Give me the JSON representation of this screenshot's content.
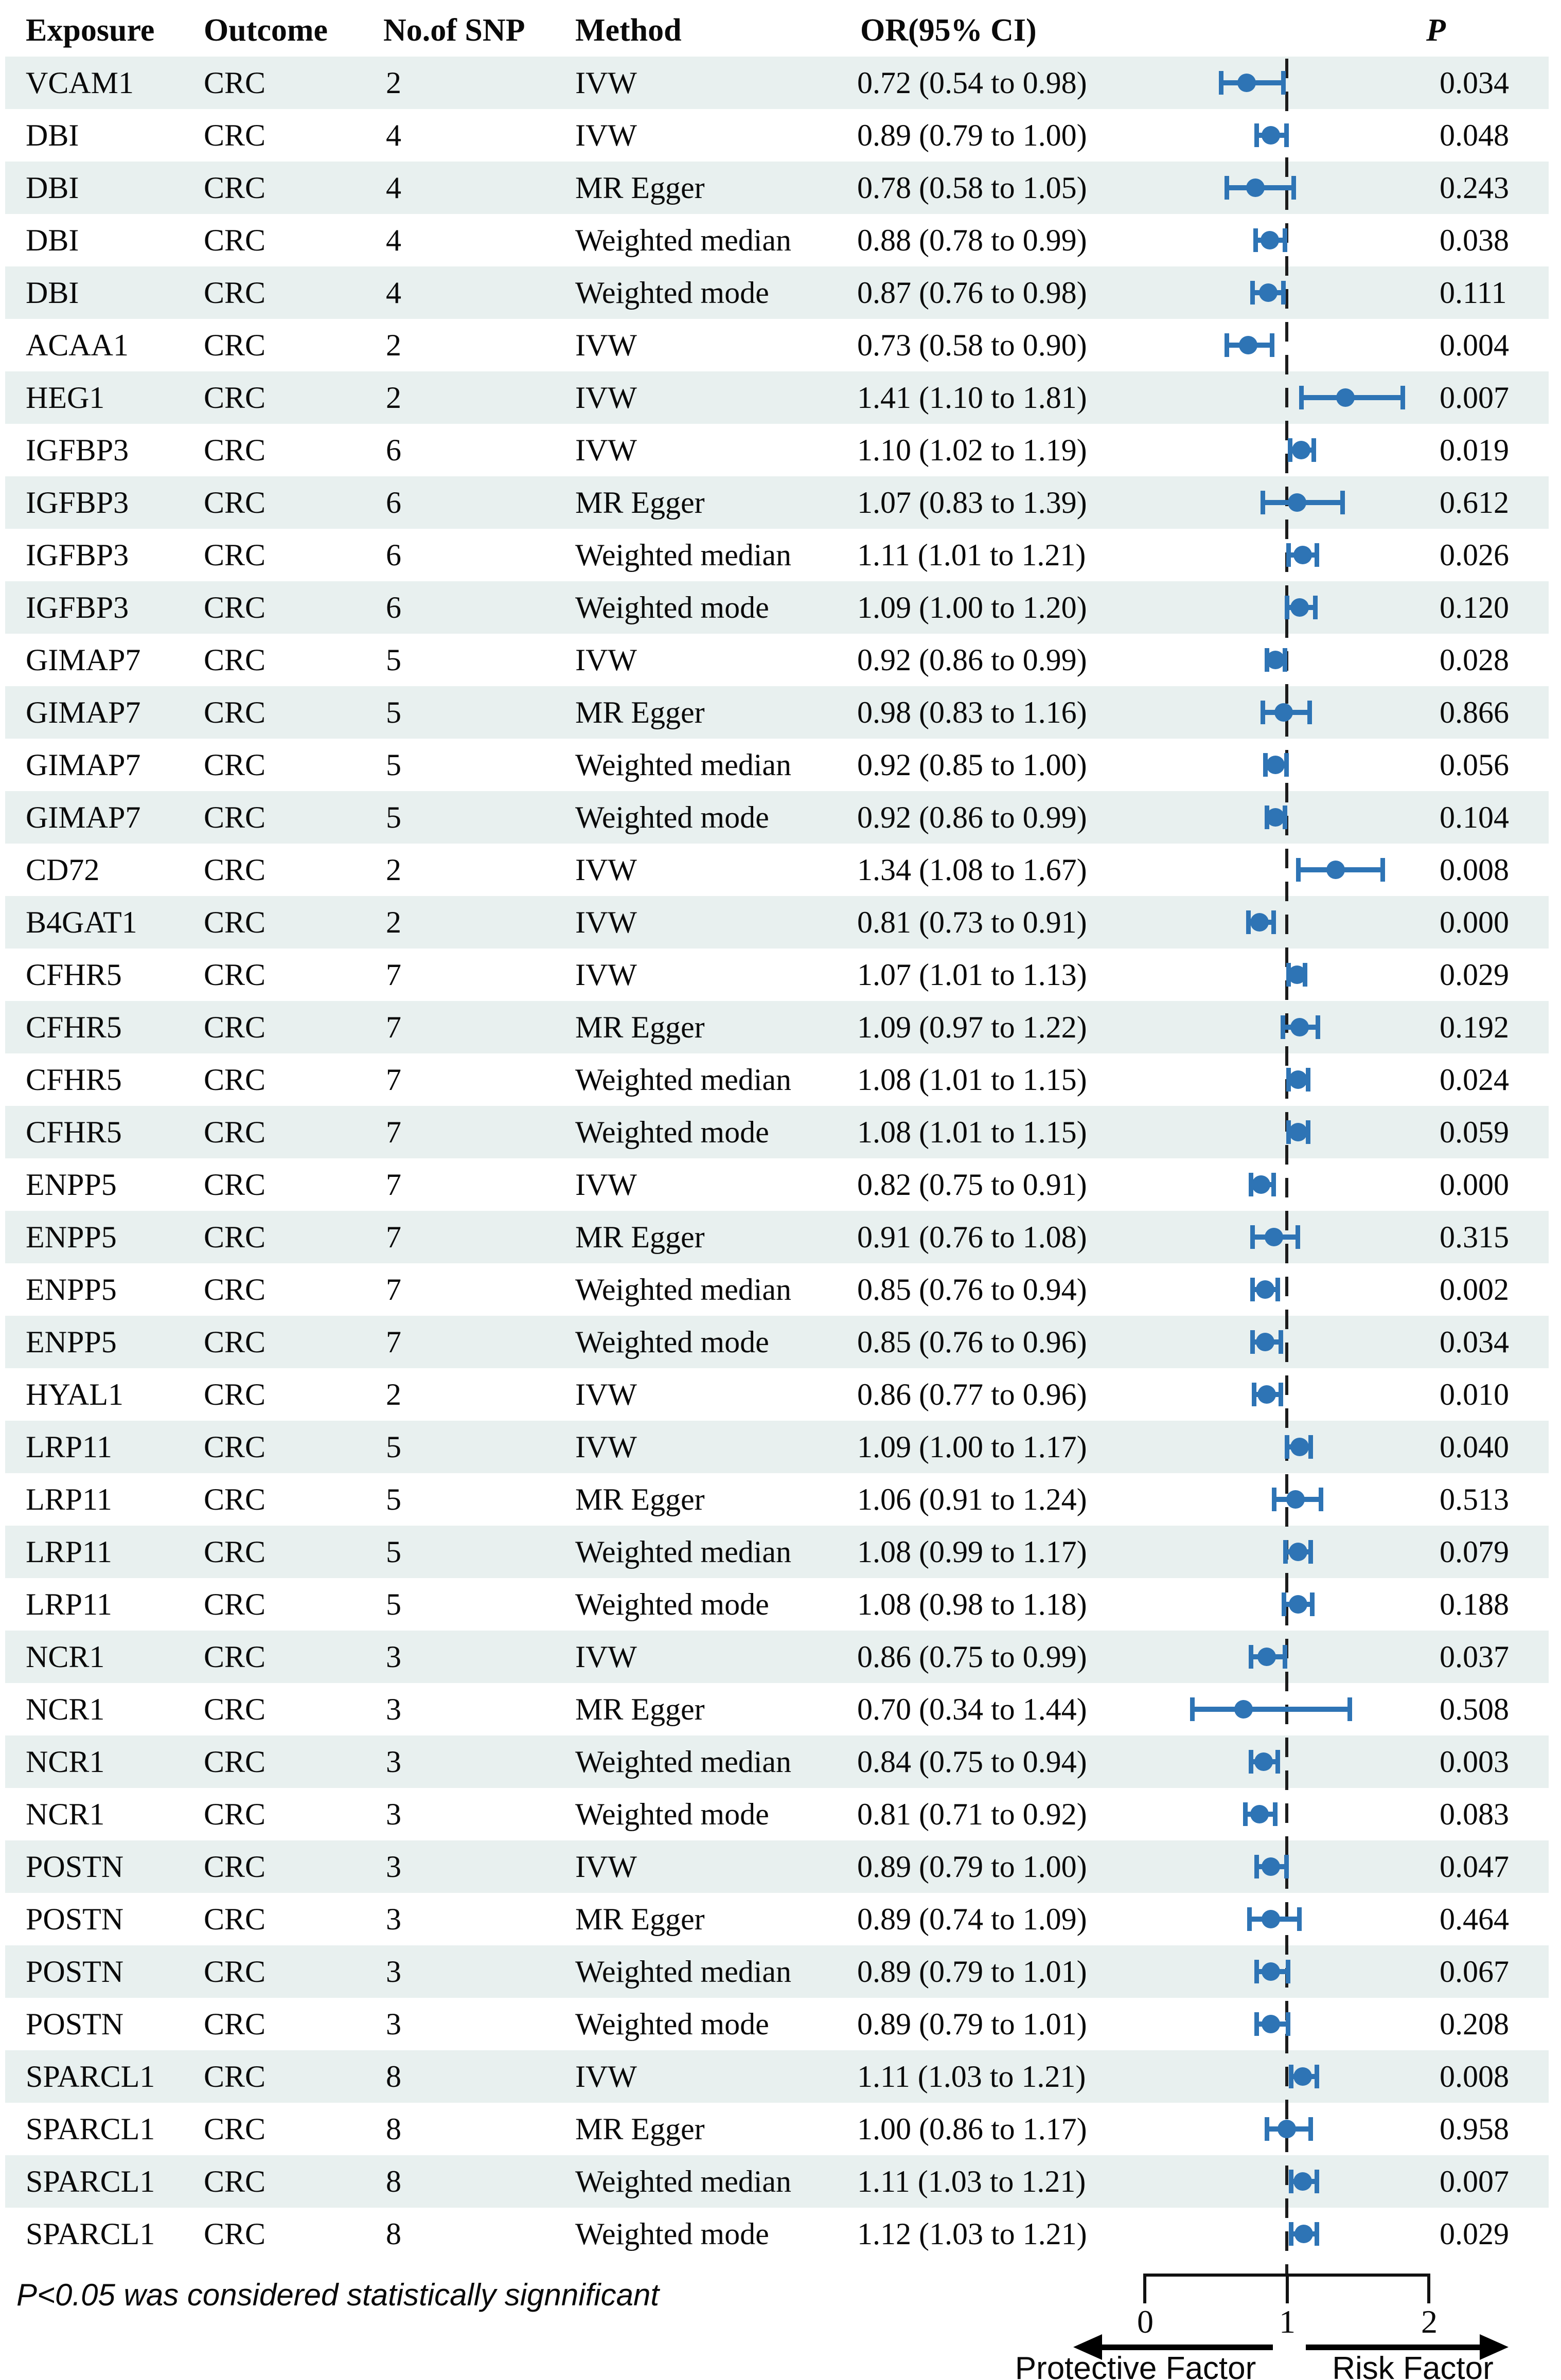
{
  "chart_data": {
    "type": "forest",
    "columns": [
      "Exposure",
      "Outcome",
      "No.of SNP",
      "Method",
      "OR(95% CI)",
      "P"
    ],
    "or_axis": {
      "min": 0,
      "max": 2,
      "ticks": [
        "0",
        "1",
        "2"
      ],
      "ref_line": 1,
      "left_label": "Protective Factor",
      "right_label": "Risk Factor"
    },
    "footnote": "P<0.05 was considered statistically signnificant",
    "rows": [
      {
        "exposure": "VCAM1",
        "outcome": "CRC",
        "snp": "2",
        "method": "IVW",
        "or": 0.72,
        "lo": 0.54,
        "hi": 0.98,
        "p": "0.034"
      },
      {
        "exposure": "DBI",
        "outcome": "CRC",
        "snp": "4",
        "method": "IVW",
        "or": 0.89,
        "lo": 0.79,
        "hi": 1.0,
        "p": "0.048"
      },
      {
        "exposure": "DBI",
        "outcome": "CRC",
        "snp": "4",
        "method": "MR Egger",
        "or": 0.78,
        "lo": 0.58,
        "hi": 1.05,
        "p": "0.243"
      },
      {
        "exposure": "DBI",
        "outcome": "CRC",
        "snp": "4",
        "method": "Weighted median",
        "or": 0.88,
        "lo": 0.78,
        "hi": 0.99,
        "p": "0.038"
      },
      {
        "exposure": "DBI",
        "outcome": "CRC",
        "snp": "4",
        "method": "Weighted mode",
        "or": 0.87,
        "lo": 0.76,
        "hi": 0.98,
        "p": "0.111"
      },
      {
        "exposure": "ACAA1",
        "outcome": "CRC",
        "snp": "2",
        "method": "IVW",
        "or": 0.73,
        "lo": 0.58,
        "hi": 0.9,
        "p": "0.004"
      },
      {
        "exposure": "HEG1",
        "outcome": "CRC",
        "snp": "2",
        "method": "IVW",
        "or": 1.41,
        "lo": 1.1,
        "hi": 1.81,
        "p": "0.007"
      },
      {
        "exposure": "IGFBP3",
        "outcome": "CRC",
        "snp": "6",
        "method": "IVW",
        "or": 1.1,
        "lo": 1.02,
        "hi": 1.19,
        "p": "0.019"
      },
      {
        "exposure": "IGFBP3",
        "outcome": "CRC",
        "snp": "6",
        "method": "MR Egger",
        "or": 1.07,
        "lo": 0.83,
        "hi": 1.39,
        "p": "0.612"
      },
      {
        "exposure": "IGFBP3",
        "outcome": "CRC",
        "snp": "6",
        "method": "Weighted median",
        "or": 1.11,
        "lo": 1.01,
        "hi": 1.21,
        "p": "0.026"
      },
      {
        "exposure": "IGFBP3",
        "outcome": "CRC",
        "snp": "6",
        "method": "Weighted mode",
        "or": 1.09,
        "lo": 1.0,
        "hi": 1.2,
        "p": "0.120"
      },
      {
        "exposure": "GIMAP7",
        "outcome": "CRC",
        "snp": "5",
        "method": "IVW",
        "or": 0.92,
        "lo": 0.86,
        "hi": 0.99,
        "p": "0.028"
      },
      {
        "exposure": "GIMAP7",
        "outcome": "CRC",
        "snp": "5",
        "method": "MR Egger",
        "or": 0.98,
        "lo": 0.83,
        "hi": 1.16,
        "p": "0.866"
      },
      {
        "exposure": "GIMAP7",
        "outcome": "CRC",
        "snp": "5",
        "method": "Weighted median",
        "or": 0.92,
        "lo": 0.85,
        "hi": 1.0,
        "p": "0.056"
      },
      {
        "exposure": "GIMAP7",
        "outcome": "CRC",
        "snp": "5",
        "method": "Weighted mode",
        "or": 0.92,
        "lo": 0.86,
        "hi": 0.99,
        "p": "0.104"
      },
      {
        "exposure": "CD72",
        "outcome": "CRC",
        "snp": "2",
        "method": "IVW",
        "or": 1.34,
        "lo": 1.08,
        "hi": 1.67,
        "p": "0.008"
      },
      {
        "exposure": "B4GAT1",
        "outcome": "CRC",
        "snp": "2",
        "method": "IVW",
        "or": 0.81,
        "lo": 0.73,
        "hi": 0.91,
        "p": "0.000"
      },
      {
        "exposure": "CFHR5",
        "outcome": "CRC",
        "snp": "7",
        "method": "IVW",
        "or": 1.07,
        "lo": 1.01,
        "hi": 1.13,
        "p": "0.029"
      },
      {
        "exposure": "CFHR5",
        "outcome": "CRC",
        "snp": "7",
        "method": "MR Egger",
        "or": 1.09,
        "lo": 0.97,
        "hi": 1.22,
        "p": "0.192"
      },
      {
        "exposure": "CFHR5",
        "outcome": "CRC",
        "snp": "7",
        "method": "Weighted median",
        "or": 1.08,
        "lo": 1.01,
        "hi": 1.15,
        "p": "0.024"
      },
      {
        "exposure": "CFHR5",
        "outcome": "CRC",
        "snp": "7",
        "method": "Weighted mode",
        "or": 1.08,
        "lo": 1.01,
        "hi": 1.15,
        "p": "0.059"
      },
      {
        "exposure": "ENPP5",
        "outcome": "CRC",
        "snp": "7",
        "method": "IVW",
        "or": 0.82,
        "lo": 0.75,
        "hi": 0.91,
        "p": "0.000"
      },
      {
        "exposure": "ENPP5",
        "outcome": "CRC",
        "snp": "7",
        "method": "MR Egger",
        "or": 0.91,
        "lo": 0.76,
        "hi": 1.08,
        "p": "0.315"
      },
      {
        "exposure": "ENPP5",
        "outcome": "CRC",
        "snp": "7",
        "method": "Weighted median",
        "or": 0.85,
        "lo": 0.76,
        "hi": 0.94,
        "p": "0.002"
      },
      {
        "exposure": "ENPP5",
        "outcome": "CRC",
        "snp": "7",
        "method": "Weighted mode",
        "or": 0.85,
        "lo": 0.76,
        "hi": 0.96,
        "p": "0.034"
      },
      {
        "exposure": "HYAL1",
        "outcome": "CRC",
        "snp": "2",
        "method": "IVW",
        "or": 0.86,
        "lo": 0.77,
        "hi": 0.96,
        "p": "0.010"
      },
      {
        "exposure": "LRP11",
        "outcome": "CRC",
        "snp": "5",
        "method": "IVW",
        "or": 1.09,
        "lo": 1.0,
        "hi": 1.17,
        "p": "0.040"
      },
      {
        "exposure": "LRP11",
        "outcome": "CRC",
        "snp": "5",
        "method": "MR Egger",
        "or": 1.06,
        "lo": 0.91,
        "hi": 1.24,
        "p": "0.513"
      },
      {
        "exposure": "LRP11",
        "outcome": "CRC",
        "snp": "5",
        "method": "Weighted median",
        "or": 1.08,
        "lo": 0.99,
        "hi": 1.17,
        "p": "0.079"
      },
      {
        "exposure": "LRP11",
        "outcome": "CRC",
        "snp": "5",
        "method": "Weighted mode",
        "or": 1.08,
        "lo": 0.98,
        "hi": 1.18,
        "p": "0.188"
      },
      {
        "exposure": "NCR1",
        "outcome": "CRC",
        "snp": "3",
        "method": "IVW",
        "or": 0.86,
        "lo": 0.75,
        "hi": 0.99,
        "p": "0.037"
      },
      {
        "exposure": "NCR1",
        "outcome": "CRC",
        "snp": "3",
        "method": "MR Egger",
        "or": 0.7,
        "lo": 0.34,
        "hi": 1.44,
        "p": "0.508"
      },
      {
        "exposure": "NCR1",
        "outcome": "CRC",
        "snp": "3",
        "method": "Weighted median",
        "or": 0.84,
        "lo": 0.75,
        "hi": 0.94,
        "p": "0.003"
      },
      {
        "exposure": "NCR1",
        "outcome": "CRC",
        "snp": "3",
        "method": "Weighted mode",
        "or": 0.81,
        "lo": 0.71,
        "hi": 0.92,
        "p": "0.083"
      },
      {
        "exposure": "POSTN",
        "outcome": "CRC",
        "snp": "3",
        "method": "IVW",
        "or": 0.89,
        "lo": 0.79,
        "hi": 1.0,
        "p": "0.047"
      },
      {
        "exposure": "POSTN",
        "outcome": "CRC",
        "snp": "3",
        "method": "MR Egger",
        "or": 0.89,
        "lo": 0.74,
        "hi": 1.09,
        "p": "0.464"
      },
      {
        "exposure": "POSTN",
        "outcome": "CRC",
        "snp": "3",
        "method": "Weighted median",
        "or": 0.89,
        "lo": 0.79,
        "hi": 1.01,
        "p": "0.067"
      },
      {
        "exposure": "POSTN",
        "outcome": "CRC",
        "snp": "3",
        "method": "Weighted mode",
        "or": 0.89,
        "lo": 0.79,
        "hi": 1.01,
        "p": "0.208"
      },
      {
        "exposure": "SPARCL1",
        "outcome": "CRC",
        "snp": "8",
        "method": "IVW",
        "or": 1.11,
        "lo": 1.03,
        "hi": 1.21,
        "p": "0.008"
      },
      {
        "exposure": "SPARCL1",
        "outcome": "CRC",
        "snp": "8",
        "method": "MR Egger",
        "or": 1.0,
        "lo": 0.86,
        "hi": 1.17,
        "p": "0.958"
      },
      {
        "exposure": "SPARCL1",
        "outcome": "CRC",
        "snp": "8",
        "method": "Weighted median",
        "or": 1.11,
        "lo": 1.03,
        "hi": 1.21,
        "p": "0.007"
      },
      {
        "exposure": "SPARCL1",
        "outcome": "CRC",
        "snp": "8",
        "method": "Weighted mode",
        "or": 1.12,
        "lo": 1.03,
        "hi": 1.21,
        "p": "0.029"
      }
    ]
  },
  "colors": {
    "marker": "#2e74b5",
    "stripe": "#e8f0ef",
    "dash": "#1c1c1c",
    "text": "#0a0a0a"
  }
}
